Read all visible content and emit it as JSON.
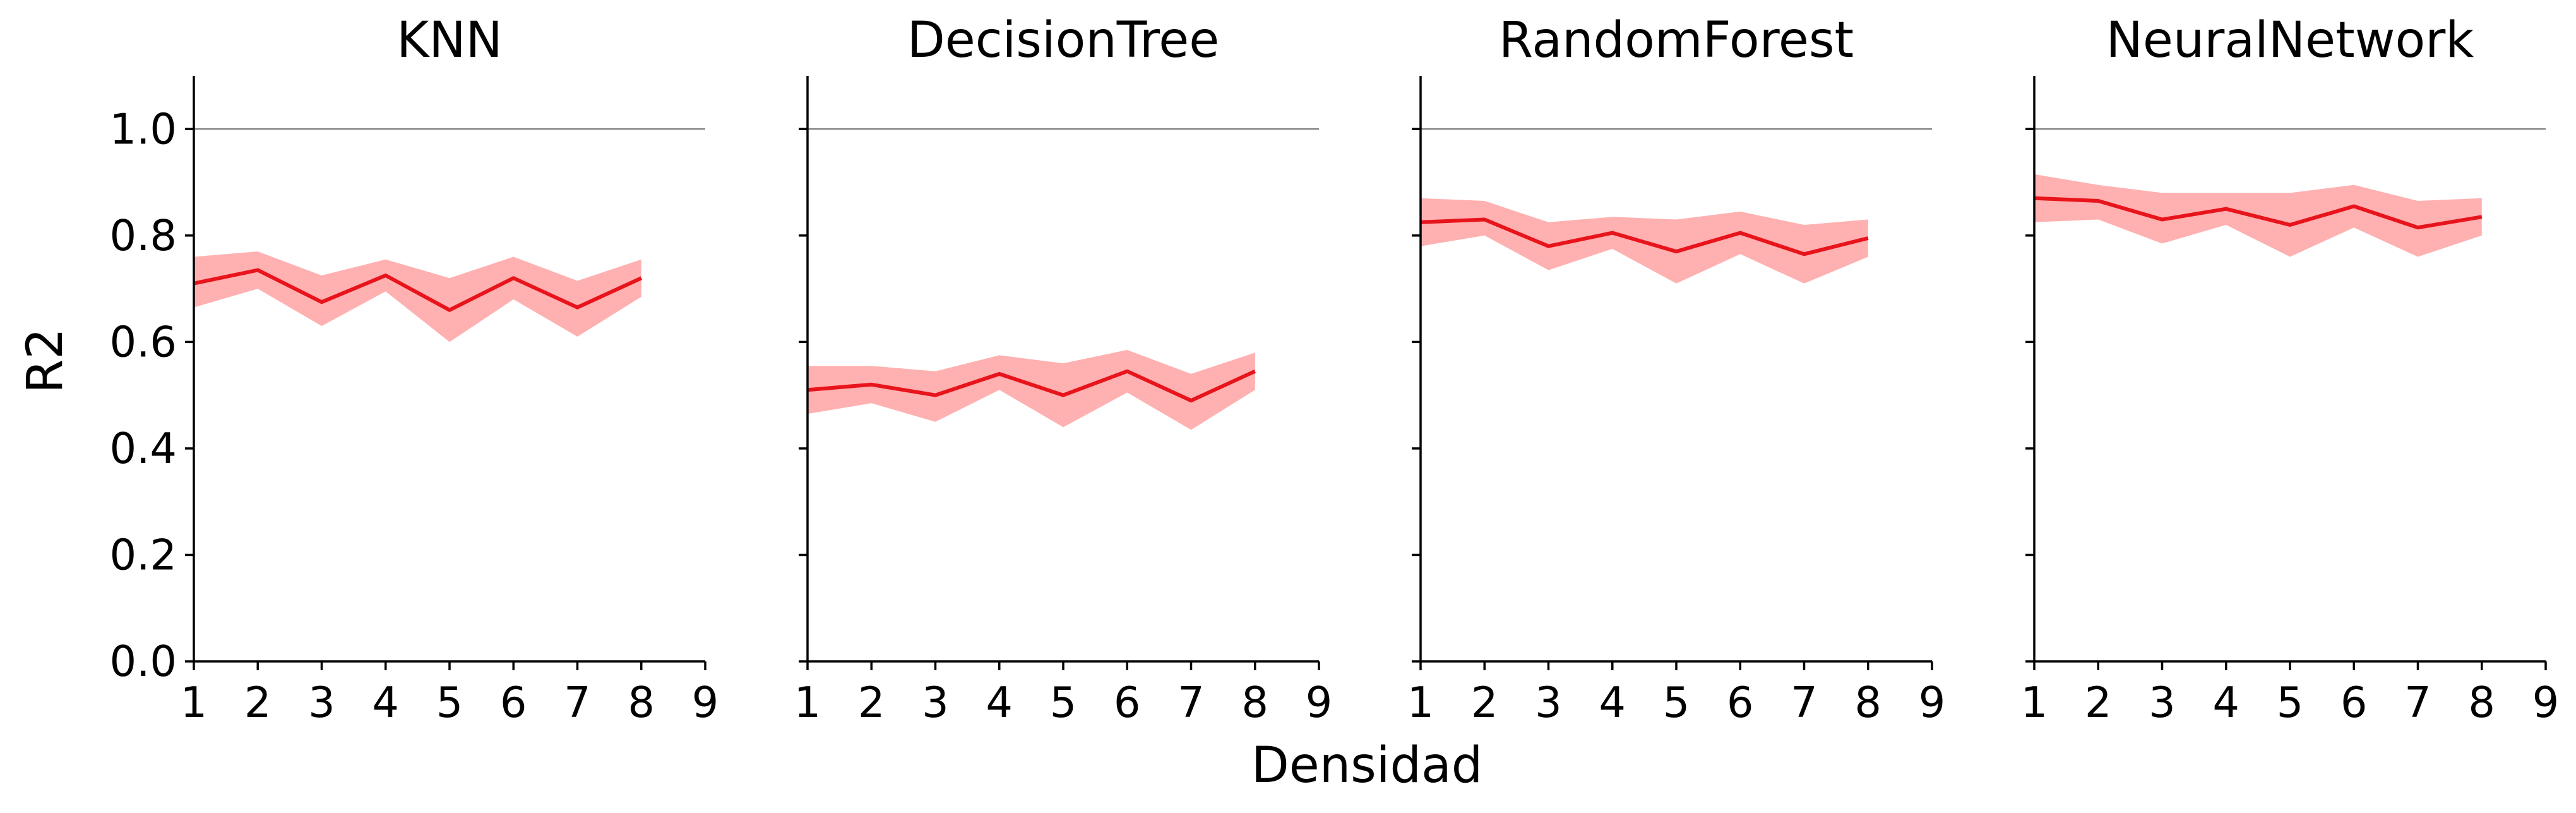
{
  "chart_data": {
    "type": "line",
    "xlabel": "Densidad",
    "ylabel": "R2",
    "xlim": [
      1,
      9
    ],
    "ylim": [
      0,
      1.1
    ],
    "xticks": [
      1,
      2,
      3,
      4,
      5,
      6,
      7,
      8,
      9
    ],
    "yticks": [
      0.0,
      0.2,
      0.4,
      0.6,
      0.8,
      1.0
    ],
    "ytick_labels": [
      "0.0",
      "0.2",
      "0.4",
      "0.6",
      "0.8",
      "1.0"
    ],
    "reference_line": 1.0,
    "grid": false,
    "colors": {
      "line": "#e8141c",
      "band": "#ffb0b0",
      "reference": "#888888"
    },
    "panels": [
      {
        "title": "KNN",
        "x": [
          1,
          2,
          3,
          4,
          5,
          6,
          7,
          8
        ],
        "mean": [
          0.71,
          0.735,
          0.675,
          0.725,
          0.66,
          0.72,
          0.665,
          0.72
        ],
        "lower": [
          0.665,
          0.7,
          0.63,
          0.695,
          0.6,
          0.68,
          0.61,
          0.685
        ],
        "upper": [
          0.76,
          0.77,
          0.725,
          0.755,
          0.72,
          0.76,
          0.715,
          0.755
        ]
      },
      {
        "title": "DecisionTree",
        "x": [
          1,
          2,
          3,
          4,
          5,
          6,
          7,
          8
        ],
        "mean": [
          0.51,
          0.52,
          0.5,
          0.54,
          0.5,
          0.545,
          0.49,
          0.545
        ],
        "lower": [
          0.465,
          0.485,
          0.45,
          0.51,
          0.44,
          0.505,
          0.435,
          0.51
        ],
        "upper": [
          0.555,
          0.555,
          0.545,
          0.575,
          0.56,
          0.585,
          0.54,
          0.58
        ]
      },
      {
        "title": "RandomForest",
        "x": [
          1,
          2,
          3,
          4,
          5,
          6,
          7,
          8
        ],
        "mean": [
          0.825,
          0.83,
          0.78,
          0.805,
          0.77,
          0.805,
          0.765,
          0.795
        ],
        "lower": [
          0.78,
          0.8,
          0.735,
          0.775,
          0.71,
          0.765,
          0.71,
          0.76
        ],
        "upper": [
          0.87,
          0.865,
          0.825,
          0.835,
          0.83,
          0.845,
          0.82,
          0.83
        ]
      },
      {
        "title": "NeuralNetwork",
        "x": [
          1,
          2,
          3,
          4,
          5,
          6,
          7,
          8
        ],
        "mean": [
          0.87,
          0.865,
          0.83,
          0.85,
          0.82,
          0.855,
          0.815,
          0.835
        ],
        "lower": [
          0.825,
          0.83,
          0.785,
          0.82,
          0.76,
          0.815,
          0.76,
          0.8
        ],
        "upper": [
          0.915,
          0.895,
          0.88,
          0.88,
          0.88,
          0.895,
          0.865,
          0.87
        ]
      }
    ]
  }
}
